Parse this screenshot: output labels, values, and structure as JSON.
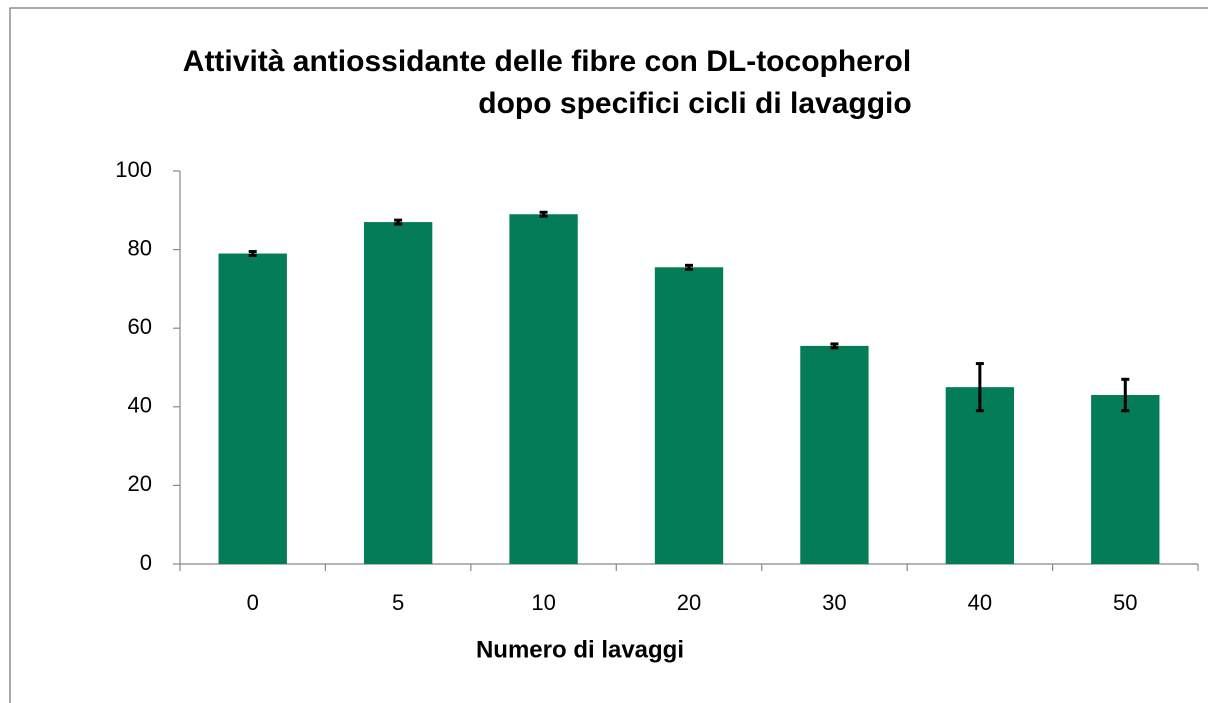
{
  "chart_data": {
    "type": "bar",
    "title": [
      "Attività antiossidante delle fibre con DL-tocopherol",
      "dopo specifici cicli di lavaggio"
    ],
    "xlabel": "Numero di lavaggi",
    "categories": [
      "0",
      "5",
      "10",
      "20",
      "30",
      "40",
      "50"
    ],
    "values": [
      79,
      87,
      89,
      75.5,
      55.5,
      45,
      43
    ],
    "errors": [
      0.5,
      0.5,
      0.5,
      0.5,
      0.5,
      6,
      4
    ],
    "color": "#047c58",
    "ylim": [
      0,
      100
    ],
    "yticks": [
      0,
      20,
      40,
      60,
      80,
      100
    ],
    "grid": false
  }
}
